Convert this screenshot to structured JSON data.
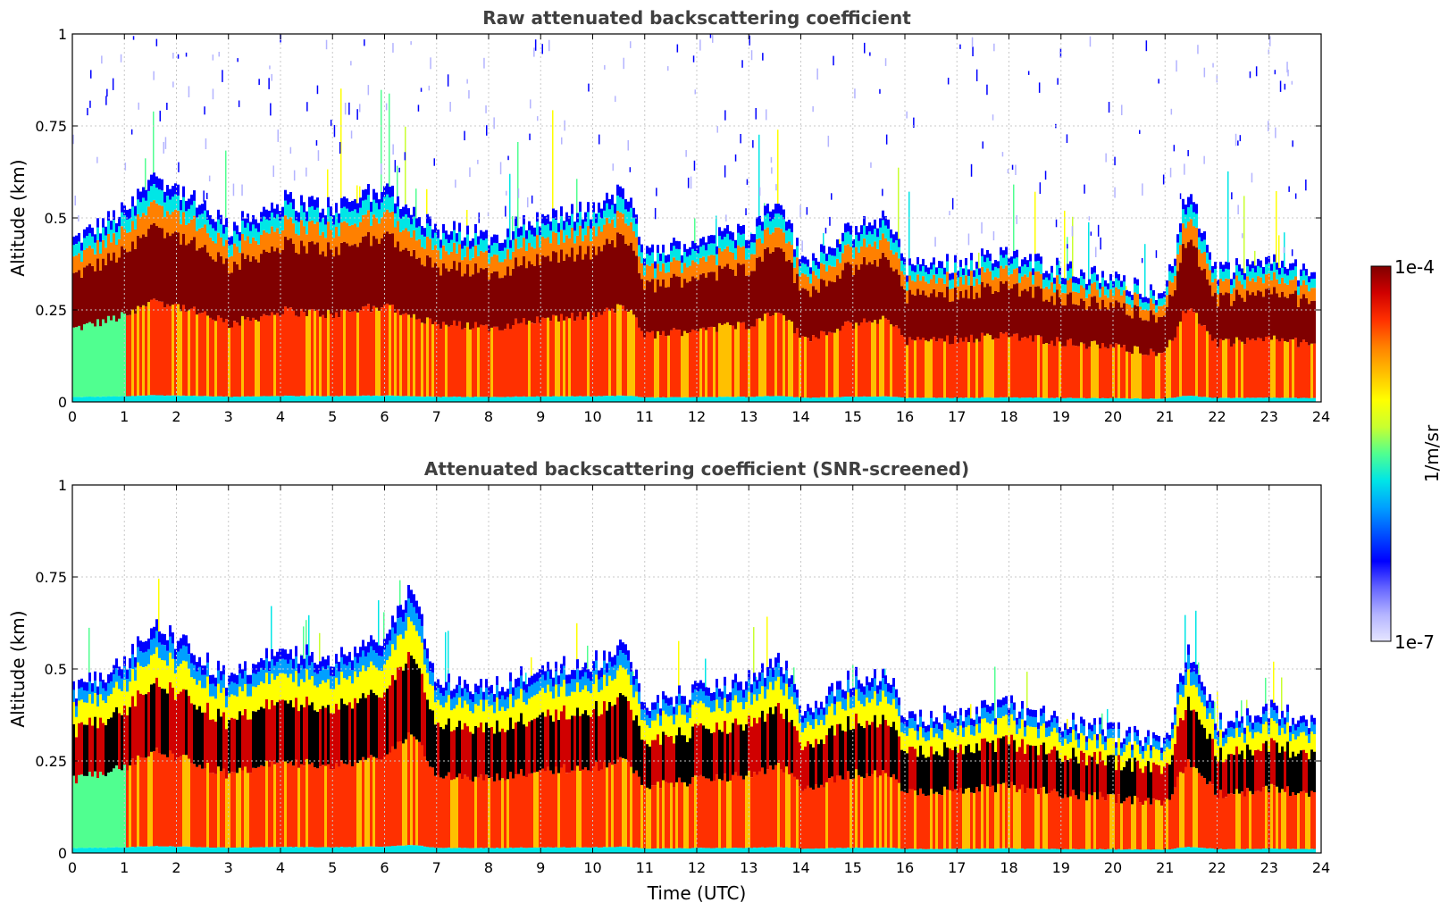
{
  "chart_data": [
    {
      "type": "heatmap",
      "title": "Raw attenuated backscattering coefficient",
      "xlabel": "",
      "ylabel": "Altitude (km)",
      "xlim": [
        0,
        24
      ],
      "ylim": [
        0,
        1
      ],
      "x_ticks": [
        "0",
        "1",
        "2",
        "3",
        "4",
        "5",
        "6",
        "7",
        "8",
        "9",
        "10",
        "11",
        "12",
        "13",
        "14",
        "15",
        "16",
        "17",
        "18",
        "19",
        "20",
        "21",
        "22",
        "23",
        "24"
      ],
      "y_ticks": [
        "0",
        "0.25",
        "0.5",
        "0.75",
        "1"
      ],
      "grid": true,
      "layer_top_km": [
        {
          "t": 0,
          "z": 0.44
        },
        {
          "t": 1,
          "z": 0.52
        },
        {
          "t": 1.5,
          "z": 0.62
        },
        {
          "t": 2,
          "z": 0.58
        },
        {
          "t": 3,
          "z": 0.47
        },
        {
          "t": 4,
          "z": 0.55
        },
        {
          "t": 5,
          "z": 0.53
        },
        {
          "t": 6,
          "z": 0.58
        },
        {
          "t": 7,
          "z": 0.47
        },
        {
          "t": 8,
          "z": 0.45
        },
        {
          "t": 9,
          "z": 0.5
        },
        {
          "t": 10,
          "z": 0.52
        },
        {
          "t": 10.6,
          "z": 0.58
        },
        {
          "t": 11,
          "z": 0.4
        },
        {
          "t": 12,
          "z": 0.44
        },
        {
          "t": 13,
          "z": 0.47
        },
        {
          "t": 13.6,
          "z": 0.55
        },
        {
          "t": 14,
          "z": 0.38
        },
        {
          "t": 15,
          "z": 0.47
        },
        {
          "t": 15.7,
          "z": 0.5
        },
        {
          "t": 16,
          "z": 0.37
        },
        {
          "t": 17,
          "z": 0.38
        },
        {
          "t": 18,
          "z": 0.4
        },
        {
          "t": 19,
          "z": 0.36
        },
        {
          "t": 20,
          "z": 0.33
        },
        {
          "t": 21,
          "z": 0.3
        },
        {
          "t": 21.4,
          "z": 0.58
        },
        {
          "t": 22,
          "z": 0.35
        },
        {
          "t": 23,
          "z": 0.38
        },
        {
          "t": 23.9,
          "z": 0.34
        }
      ]
    },
    {
      "type": "heatmap",
      "title": "Attenuated backscattering coefficient (SNR-screened)",
      "xlabel": "Time (UTC)",
      "ylabel": "Altitude (km)",
      "xlim": [
        0,
        24
      ],
      "ylim": [
        0,
        1
      ],
      "x_ticks": [
        "0",
        "1",
        "2",
        "3",
        "4",
        "5",
        "6",
        "7",
        "8",
        "9",
        "10",
        "11",
        "12",
        "13",
        "14",
        "15",
        "16",
        "17",
        "18",
        "19",
        "20",
        "21",
        "22",
        "23",
        "24"
      ],
      "y_ticks": [
        "0",
        "0.25",
        "0.5",
        "0.75",
        "1"
      ],
      "grid": true,
      "layer_top_km": [
        {
          "t": 0,
          "z": 0.44
        },
        {
          "t": 1,
          "z": 0.52
        },
        {
          "t": 1.5,
          "z": 0.62
        },
        {
          "t": 2,
          "z": 0.58
        },
        {
          "t": 3,
          "z": 0.47
        },
        {
          "t": 4,
          "z": 0.55
        },
        {
          "t": 5,
          "z": 0.53
        },
        {
          "t": 6,
          "z": 0.58
        },
        {
          "t": 6.5,
          "z": 0.72
        },
        {
          "t": 7,
          "z": 0.47
        },
        {
          "t": 8,
          "z": 0.45
        },
        {
          "t": 9,
          "z": 0.5
        },
        {
          "t": 10,
          "z": 0.52
        },
        {
          "t": 10.6,
          "z": 0.56
        },
        {
          "t": 11,
          "z": 0.4
        },
        {
          "t": 12,
          "z": 0.44
        },
        {
          "t": 13,
          "z": 0.47
        },
        {
          "t": 13.6,
          "z": 0.53
        },
        {
          "t": 14,
          "z": 0.38
        },
        {
          "t": 15,
          "z": 0.48
        },
        {
          "t": 15.7,
          "z": 0.47
        },
        {
          "t": 16,
          "z": 0.37
        },
        {
          "t": 17,
          "z": 0.38
        },
        {
          "t": 18,
          "z": 0.4
        },
        {
          "t": 19,
          "z": 0.36
        },
        {
          "t": 20,
          "z": 0.33
        },
        {
          "t": 21,
          "z": 0.3
        },
        {
          "t": 21.4,
          "z": 0.55
        },
        {
          "t": 22,
          "z": 0.35
        },
        {
          "t": 23,
          "z": 0.39
        },
        {
          "t": 23.9,
          "z": 0.35
        }
      ]
    }
  ],
  "colorbar": {
    "label": "1/m/sr",
    "min_label": "1e-7",
    "max_label": "1e-4",
    "colors": [
      "#e6e6ff",
      "#b4b4ff",
      "#6464ff",
      "#0000ff",
      "#0050ff",
      "#00a0ff",
      "#00e6e6",
      "#50ff90",
      "#c8ff30",
      "#ffff00",
      "#ffc000",
      "#ff8000",
      "#ff3000",
      "#d00000",
      "#800000"
    ]
  }
}
